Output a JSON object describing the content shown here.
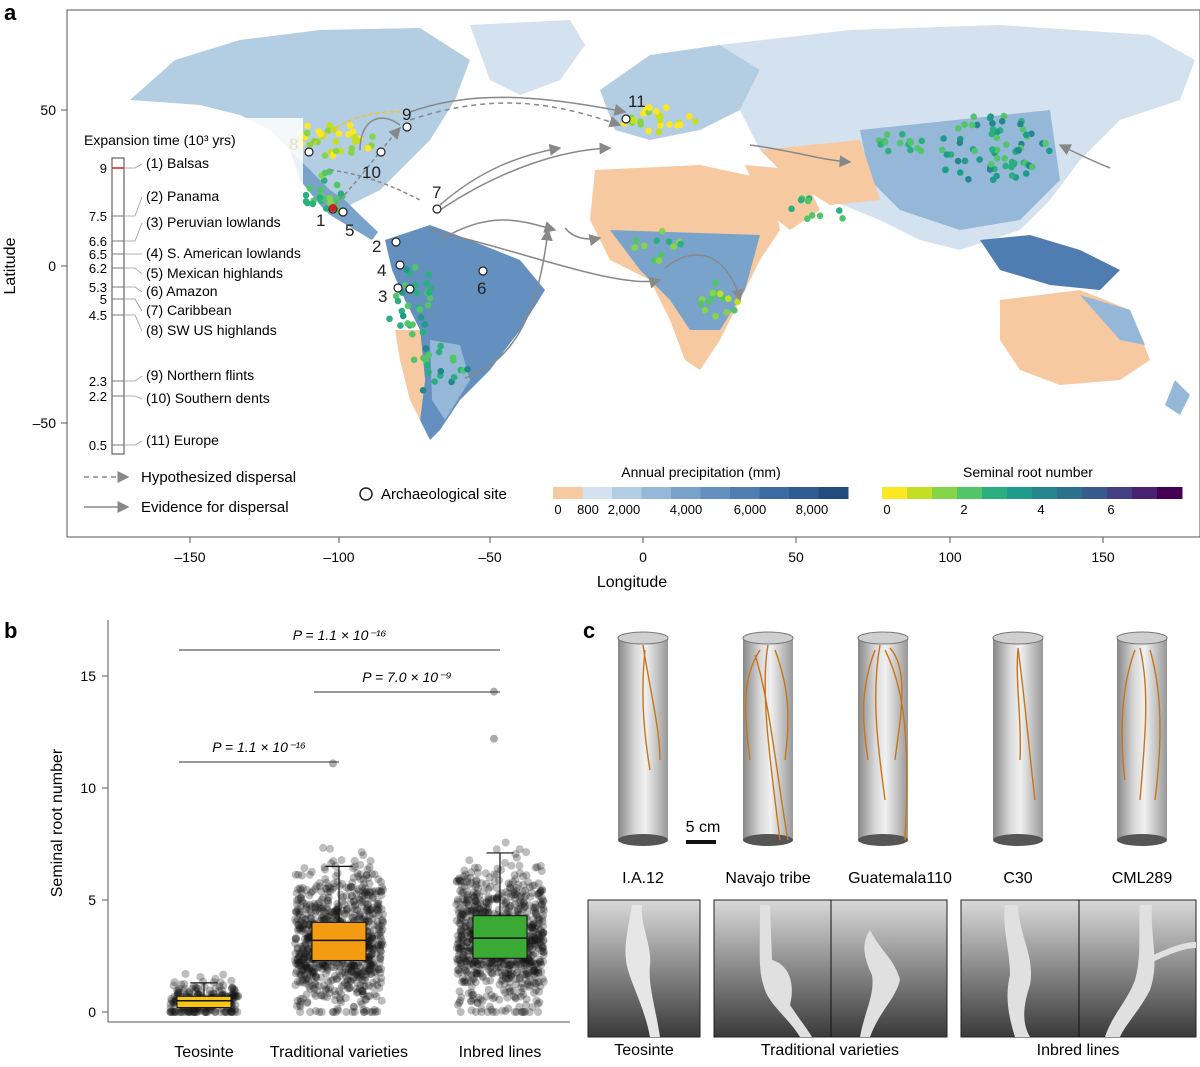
{
  "panel_labels": {
    "a": "a",
    "b": "b",
    "c": "c"
  },
  "map": {
    "xlabel": "Longitude",
    "ylabel": "Latitude",
    "xticks": [
      "–150",
      "–100",
      "–50",
      "0",
      "50",
      "100",
      "150"
    ],
    "yticks": [
      "50",
      "0",
      "–50"
    ],
    "expansion_title": "Expansion time (10³ yrs)",
    "timeline_ticks": [
      "9",
      "7.5",
      "6.6",
      "6.5",
      "6.2",
      "5.3",
      "5",
      "4.5",
      "2.3",
      "2.2",
      "0.5"
    ],
    "regions": [
      "(1) Balsas",
      "(2) Panama",
      "(3) Peruvian lowlands",
      "(4) S. American lowlands",
      "(5) Mexican highlands",
      "(6) Amazon",
      "(7) Caribbean",
      "(8) SW US highlands",
      "(9) Northern flints",
      "(10) Southern dents",
      "(11) Europe"
    ],
    "site_numbers": [
      "1",
      "2",
      "3",
      "4",
      "5",
      "6",
      "7",
      "8",
      "9",
      "10",
      "11"
    ],
    "legend": {
      "hypothesized": "Hypothesized dispersal",
      "evidence": "Evidence for dispersal",
      "archaeological": "Archaeological site",
      "precip_title": "Annual precipitation (mm)",
      "precip_ticks": [
        "0",
        "800",
        "2,000",
        "4,000",
        "6,000",
        "8,000"
      ],
      "root_title": "Seminal root number",
      "root_ticks": [
        "0",
        "2",
        "4",
        "6"
      ],
      "precip_colors": [
        "#f7c9a0",
        "#d4e1ee",
        "#b3cde3",
        "#95b8d8",
        "#7aa3cb",
        "#6490bf",
        "#4f7db2",
        "#3c6ba3",
        "#2d5b92",
        "#214c80"
      ],
      "root_colors": [
        "#fde725",
        "#c2df23",
        "#86d549",
        "#52c569",
        "#2ab07f",
        "#1e9b8a",
        "#25858e",
        "#2d708e",
        "#38598c",
        "#433e85",
        "#482173",
        "#440154"
      ]
    }
  },
  "chart_data": {
    "type": "box",
    "ylabel": "Seminal root number",
    "categories": [
      "Teosinte",
      "Traditional varieties",
      "Inbred lines"
    ],
    "yticks": [
      "0",
      "5",
      "10",
      "15"
    ],
    "ylim": [
      0,
      17.5
    ],
    "boxes": [
      {
        "name": "Teosinte",
        "q1": 0.2,
        "median": 0.5,
        "q3": 0.7,
        "whisker_low": 0,
        "whisker_high": 1.3,
        "color": "#f5c518"
      },
      {
        "name": "Traditional varieties",
        "q1": 2.3,
        "median": 3.2,
        "q3": 4.0,
        "whisker_low": 0,
        "whisker_high": 6.5,
        "color": "#f39c12"
      },
      {
        "name": "Inbred lines",
        "q1": 2.4,
        "median": 3.3,
        "q3": 4.3,
        "whisker_low": 0,
        "whisker_high": 7.1,
        "color": "#3aaa35"
      }
    ],
    "outliers": [
      {
        "group": "Traditional varieties",
        "value": 11.1
      },
      {
        "group": "Inbred lines",
        "value": 14.3
      },
      {
        "group": "Inbred lines",
        "value": 12.2
      }
    ],
    "comparisons": [
      {
        "from": "Teosinte",
        "to": "Inbred lines",
        "label": "P = 1.1 × 10⁻¹⁶"
      },
      {
        "from": "Traditional varieties",
        "to": "Inbred lines",
        "label": "P = 7.0 × 10⁻⁹"
      },
      {
        "from": "Teosinte",
        "to": "Traditional varieties",
        "label": "P = 1.1 × 10⁻¹⁶"
      }
    ]
  },
  "panel_c": {
    "scale_bar": "5 cm",
    "tube_labels": [
      "I.A.12",
      "Navajo tribe",
      "Guatemala110",
      "C30",
      "CML289"
    ],
    "group_labels": [
      "Teosinte",
      "Traditional varieties",
      "Inbred lines"
    ]
  }
}
